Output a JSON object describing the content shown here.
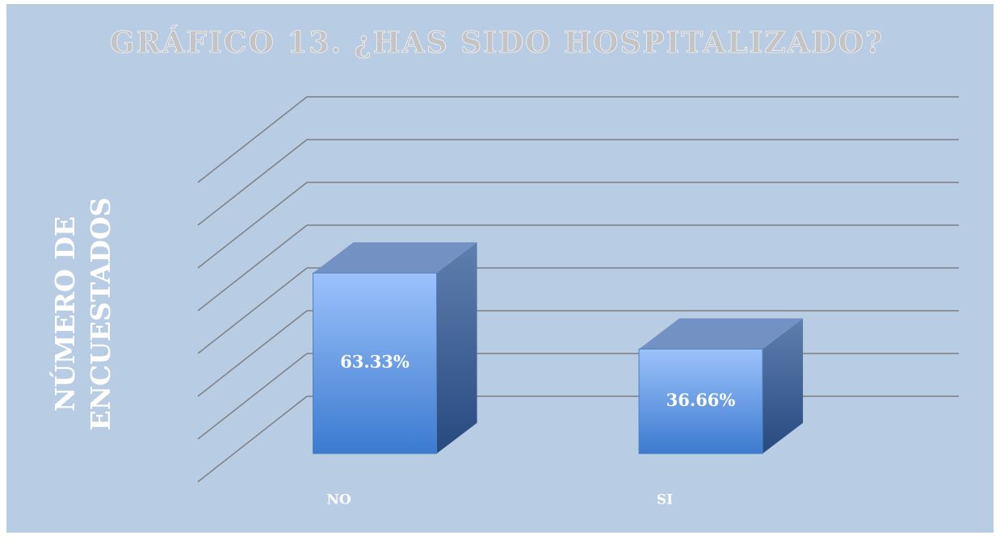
{
  "chart_data": {
    "type": "bar3d",
    "title": "GRÁFICO 13. ¿HAS SIDO HOSPITALIZADO?",
    "ylabel": "NÚMERO DE ENCUESTADOS",
    "categories": [
      "NO",
      "SI"
    ],
    "values": [
      63.33,
      36.66
    ],
    "value_labels": [
      "63.33%",
      "36.66%"
    ],
    "color": "#4f81bd",
    "ylim": [
      0,
      105
    ],
    "yticks": [
      0,
      15,
      30,
      45,
      60,
      75,
      90,
      105
    ],
    "grid": true
  }
}
